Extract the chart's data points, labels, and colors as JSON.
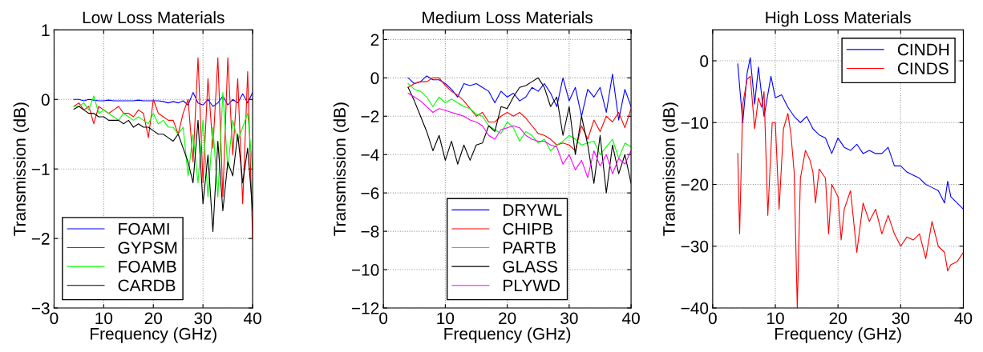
{
  "chart_data": [
    {
      "type": "line",
      "title": "Low Loss Materials",
      "xlabel": "Frequency (GHz)",
      "ylabel": "Transmission (dB)",
      "xlim": [
        0,
        40
      ],
      "xticks": [
        0,
        10,
        20,
        30,
        40
      ],
      "ylim": [
        -3,
        1
      ],
      "yticks": [
        -3,
        -2,
        -1,
        0,
        1
      ],
      "grid": true,
      "legend": "bottom left",
      "x": [
        4,
        5,
        6,
        7,
        8,
        9,
        10,
        11,
        12,
        13,
        14,
        15,
        16,
        17,
        18,
        19,
        20,
        21,
        22,
        23,
        24,
        25,
        26,
        27,
        28,
        29,
        30,
        31,
        32,
        33,
        34,
        35,
        36,
        37,
        38,
        39,
        40
      ],
      "series": [
        {
          "name": "FOAMI",
          "color": "#0000ff",
          "values": [
            0,
            0,
            -0.02,
            0,
            -0.01,
            -0.02,
            -0.02,
            -0.01,
            -0.02,
            -0.02,
            -0.02,
            -0.02,
            -0.02,
            -0.01,
            -0.02,
            -0.02,
            -0.02,
            -0.02,
            -0.03,
            -0.05,
            -0.03,
            -0.05,
            -0.02,
            -0.08,
            0.1,
            -0.05,
            -0.08,
            0,
            -0.1,
            -0.05,
            0.05,
            -0.08,
            0,
            -0.05,
            0.08,
            -0.05,
            0.1
          ]
        },
        {
          "name": "GYPSM",
          "color": "#ff0000",
          "values": [
            -0.1,
            -0.05,
            -0.15,
            -0.1,
            -0.35,
            -0.1,
            -0.15,
            -0.2,
            -0.15,
            -0.1,
            -0.2,
            -0.2,
            -0.25,
            -0.15,
            -0.2,
            -0.55,
            0.0,
            -0.2,
            -0.25,
            -0.3,
            -0.3,
            -0.5,
            -0.2,
            0.0,
            -0.9,
            0.6,
            -1.2,
            0.3,
            -0.7,
            0.6,
            -1.4,
            0.6,
            -0.8,
            0.3,
            -1.5,
            0.4,
            -2.0
          ]
        },
        {
          "name": "FOAMB",
          "color": "#00ff00",
          "values": [
            -0.1,
            -0.1,
            -0.05,
            -0.15,
            0.05,
            -0.2,
            -0.15,
            -0.2,
            -0.25,
            -0.3,
            -0.2,
            -0.25,
            -0.3,
            -0.25,
            -0.3,
            -0.35,
            -0.2,
            -0.35,
            -0.3,
            -0.4,
            -0.4,
            -0.5,
            -0.4,
            -1.1,
            -0.5,
            -1.2,
            -0.3,
            -1.4,
            -0.4,
            -1.4,
            0.1,
            -1.0,
            -0.3,
            -0.6,
            -0.4,
            -0.2,
            -1.0
          ]
        },
        {
          "name": "CARDB",
          "color": "#000000",
          "values": [
            -0.14,
            -0.1,
            -0.15,
            -0.2,
            -0.2,
            -0.25,
            -0.25,
            -0.3,
            -0.3,
            -0.3,
            -0.35,
            -0.3,
            -0.4,
            -0.35,
            -0.4,
            -0.4,
            -0.45,
            -0.5,
            -0.5,
            -0.55,
            -0.6,
            -0.5,
            -0.7,
            -0.9,
            -1.2,
            -0.3,
            -1.5,
            -0.8,
            -1.9,
            -0.6,
            -1.6,
            -0.9,
            -1.1,
            -0.5,
            -1.2,
            -0.7,
            -1.6
          ]
        }
      ]
    },
    {
      "type": "line",
      "title": "Medium Loss Materials",
      "xlabel": "Frequency (GHz)",
      "ylabel": "Transmission (dB)",
      "xlim": [
        0,
        40
      ],
      "xticks": [
        0,
        10,
        20,
        30,
        40
      ],
      "ylim": [
        -12,
        2.5
      ],
      "yticks": [
        -12,
        -10,
        -8,
        -6,
        -4,
        -2,
        0,
        2
      ],
      "grid": true,
      "legend": "bottom",
      "x": [
        4,
        5,
        6,
        7,
        8,
        9,
        10,
        11,
        12,
        13,
        14,
        15,
        16,
        17,
        18,
        19,
        20,
        21,
        22,
        23,
        24,
        25,
        26,
        27,
        28,
        29,
        30,
        31,
        32,
        33,
        34,
        35,
        36,
        37,
        38,
        39,
        40
      ],
      "series": [
        {
          "name": "DRYWL",
          "color": "#0000ff",
          "values": [
            0,
            -0.3,
            -0.2,
            0.1,
            -0.1,
            -0.1,
            -0.3,
            -0.6,
            -1.0,
            -0.3,
            -0.4,
            -0.3,
            -0.5,
            -0.7,
            -1.3,
            -0.7,
            -1.0,
            -0.8,
            -1.2,
            -1.0,
            -0.5,
            -0.7,
            -0.3,
            -0.8,
            -1.5,
            0,
            -1.2,
            -0.5,
            -2.0,
            -0.6,
            -1.0,
            -0.5,
            -1.8,
            0.2,
            -2.2,
            -0.6,
            -1.5
          ]
        },
        {
          "name": "CHIPB",
          "color": "#ff0000",
          "values": [
            -0.5,
            -0.3,
            -0.2,
            -0.2,
            0,
            0,
            -0.4,
            -0.7,
            -0.9,
            -1.2,
            -1.6,
            -2.0,
            -1.8,
            -2.3,
            -2.3,
            -2.0,
            -1.8,
            -2.0,
            -1.8,
            -2.1,
            -2.5,
            -2.9,
            -3.0,
            -3.2,
            -3.5,
            -3.4,
            -3.5,
            -3.8,
            -2.5,
            -3.2,
            -2.2,
            -2.8,
            -2.0,
            -2.3,
            -1.8,
            -2.6,
            -1.6
          ]
        },
        {
          "name": "PARTB",
          "color": "#00ff00",
          "values": [
            -0.3,
            -0.6,
            -0.7,
            -1.0,
            -1.5,
            -1.0,
            -1.3,
            -1.1,
            -1.3,
            -1.5,
            -1.6,
            -1.9,
            -2.0,
            -2.5,
            -2.7,
            -2.9,
            -2.3,
            -2.6,
            -3.3,
            -2.8,
            -3.0,
            -3.4,
            -3.2,
            -3.8,
            -3.5,
            -3.3,
            -3.0,
            -3.2,
            -3.5,
            -3.4,
            -3.3,
            -4.0,
            -3.6,
            -3.2,
            -4.2,
            -3.4,
            -3.6
          ]
        },
        {
          "name": "GLASS",
          "color": "#000000",
          "values": [
            -0.5,
            -1.2,
            -2.0,
            -2.8,
            -3.8,
            -3.0,
            -4.3,
            -3.3,
            -4.5,
            -3.5,
            -4.3,
            -3.5,
            -3.4,
            -2.5,
            -2.8,
            -1.5,
            -1.6,
            -1.0,
            -0.5,
            -0.4,
            -0.2,
            0,
            -0.5,
            -1.5,
            -1.0,
            -3.0,
            -1.5,
            -4.0,
            -2.0,
            -3.5,
            -5.5,
            -3.0,
            -6.0,
            -3.5,
            -5.0,
            -4.0,
            -5.5
          ]
        },
        {
          "name": "PLYWD",
          "color": "#ff00ff",
          "values": [
            -0.8,
            -1.0,
            -1.2,
            -1.5,
            -1.8,
            -1.6,
            -1.7,
            -1.8,
            -1.9,
            -2.0,
            -2.2,
            -2.3,
            -2.5,
            -3.0,
            -3.2,
            -2.7,
            -2.6,
            -2.5,
            -2.6,
            -3.0,
            -3.2,
            -3.3,
            -3.3,
            -3.5,
            -3.6,
            -4.5,
            -4.0,
            -4.8,
            -4.3,
            -5.2,
            -3.8,
            -4.6,
            -4.0,
            -5.0,
            -4.2,
            -4.5,
            -3.8
          ]
        }
      ]
    },
    {
      "type": "line",
      "title": "High Loss Materials",
      "xlabel": "Frequency (GHz)",
      "ylabel": "Transmission (dB)",
      "xlim": [
        0,
        40
      ],
      "xticks": [
        0,
        10,
        20,
        30,
        40
      ],
      "ylim": [
        -40,
        5
      ],
      "yticks": [
        -40,
        -30,
        -20,
        -10,
        0
      ],
      "grid": true,
      "legend": "top right",
      "series": [
        {
          "name": "CINDH",
          "color": "#0000ff",
          "x": [
            4,
            4.8,
            5.5,
            6,
            6.7,
            7.3,
            8.2,
            9.3,
            10,
            11,
            12,
            13,
            14,
            15,
            16,
            17,
            18,
            19,
            20,
            21,
            22,
            23,
            24,
            25,
            26,
            27,
            28,
            29,
            30,
            31,
            32,
            33,
            34,
            35,
            36,
            37,
            37.5,
            38,
            39,
            40
          ],
          "values": [
            -0.5,
            -10,
            -2,
            0.5,
            -7,
            -1,
            -9,
            -2.5,
            -6,
            -5.5,
            -7.5,
            -9,
            -10,
            -9,
            -11,
            -12,
            -12.5,
            -15,
            -12.5,
            -14,
            -14.5,
            -13.5,
            -15,
            -14.5,
            -15,
            -15,
            -14,
            -17,
            -17,
            -18,
            -18.5,
            -19,
            -20,
            -20.5,
            -21,
            -23,
            -19.5,
            -22,
            -23,
            -24
          ]
        },
        {
          "name": "CINDS",
          "color": "#ff0000",
          "x": [
            4,
            4.3,
            4.8,
            5.5,
            6,
            6.7,
            7.3,
            7.8,
            8.2,
            8.8,
            9.5,
            10,
            10.6,
            11.3,
            12,
            12.5,
            13,
            13.5,
            14,
            14.8,
            15.5,
            16,
            16.4,
            17,
            18,
            18.5,
            19,
            19.5,
            20,
            20.5,
            21,
            22,
            23,
            23.5,
            24,
            25,
            26,
            27,
            28,
            29,
            30,
            31,
            32,
            33,
            34,
            35,
            36,
            37,
            37.5,
            38,
            39,
            40
          ],
          "values": [
            -15,
            -28,
            -7,
            -3,
            -2.5,
            -11,
            -6,
            -7.5,
            -5,
            -25,
            -10,
            -10,
            -24,
            -11,
            -8.5,
            -12,
            -18,
            -40,
            -19,
            -14.5,
            -16,
            -18,
            -23,
            -17.5,
            -19,
            -28,
            -20,
            -21,
            -22,
            -29,
            -24,
            -21,
            -31,
            -27,
            -23,
            -26,
            -24,
            -28,
            -25,
            -28,
            -30,
            -28.5,
            -29,
            -28,
            -32,
            -26,
            -30,
            -31,
            -34,
            -33,
            -32.5,
            -31
          ]
        }
      ]
    }
  ]
}
